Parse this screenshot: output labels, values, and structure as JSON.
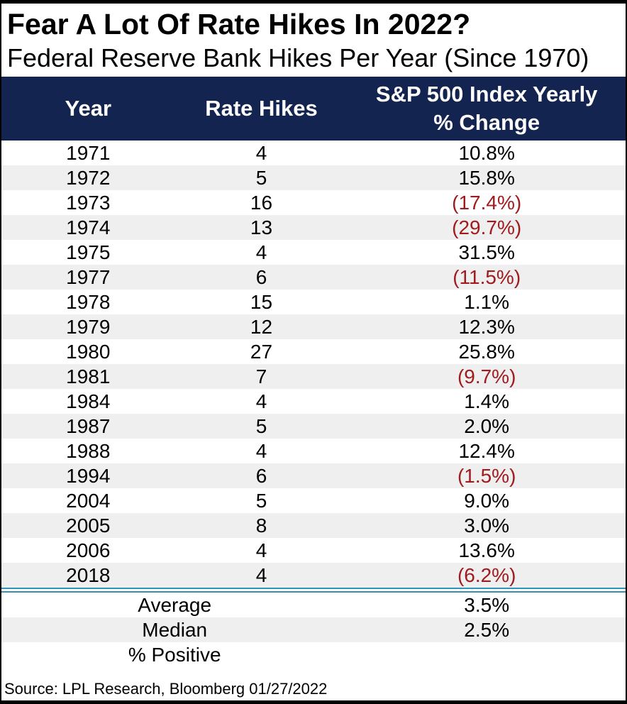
{
  "title": "Fear A Lot Of Rate Hikes In 2022?",
  "subtitle": "Federal Reserve Bank Hikes Per Year (Since 1970)",
  "header": {
    "year": "Year",
    "rate_hikes": "Rate Hikes",
    "change_line1": "S&P 500 Index Yearly",
    "change_line2": "% Change"
  },
  "chart_data": {
    "type": "table",
    "title": "Fear A Lot Of Rate Hikes In 2022?",
    "subtitle": "Federal Reserve Bank Hikes Per Year (Since 1970)",
    "columns": [
      "Year",
      "Rate Hikes",
      "S&P 500 Index Yearly % Change"
    ],
    "rows": [
      {
        "year": "1971",
        "rate_hikes": "4",
        "change": "10.8%"
      },
      {
        "year": "1972",
        "rate_hikes": "5",
        "change": "15.8%"
      },
      {
        "year": "1973",
        "rate_hikes": "16",
        "change": "(17.4%)"
      },
      {
        "year": "1974",
        "rate_hikes": "13",
        "change": "(29.7%)"
      },
      {
        "year": "1975",
        "rate_hikes": "4",
        "change": "31.5%"
      },
      {
        "year": "1977",
        "rate_hikes": "6",
        "change": "(11.5%)"
      },
      {
        "year": "1978",
        "rate_hikes": "15",
        "change": "1.1%"
      },
      {
        "year": "1979",
        "rate_hikes": "12",
        "change": "12.3%"
      },
      {
        "year": "1980",
        "rate_hikes": "27",
        "change": "25.8%"
      },
      {
        "year": "1981",
        "rate_hikes": "7",
        "change": "(9.7%)"
      },
      {
        "year": "1984",
        "rate_hikes": "4",
        "change": "1.4%"
      },
      {
        "year": "1987",
        "rate_hikes": "5",
        "change": "2.0%"
      },
      {
        "year": "1988",
        "rate_hikes": "4",
        "change": "12.4%"
      },
      {
        "year": "1994",
        "rate_hikes": "6",
        "change": "(1.5%)"
      },
      {
        "year": "2004",
        "rate_hikes": "5",
        "change": "9.0%"
      },
      {
        "year": "2005",
        "rate_hikes": "8",
        "change": "3.0%"
      },
      {
        "year": "2006",
        "rate_hikes": "4",
        "change": "13.6%"
      },
      {
        "year": "2018",
        "rate_hikes": "4",
        "change": "(6.2%)"
      }
    ],
    "summary": [
      {
        "label": "Average",
        "value": "3.5%"
      },
      {
        "label": "Median",
        "value": "2.5%"
      },
      {
        "label": "% Positive",
        "value": ""
      }
    ],
    "negative_format": "parentheses shown in dark red",
    "layout": {
      "striped": true,
      "header_position": "top"
    }
  },
  "footer": {
    "source": "Source: LPL Research, Bloomberg 01/27/2022"
  },
  "colors": {
    "header_bg": "#142450",
    "header_text": "#ffffff",
    "row_bg": "#ffffff",
    "row_alt_bg": "#efefef",
    "negative_text": "#a11a1e",
    "separator_line": "#2f94b4",
    "frame_border": "#000000",
    "body_text": "#000000"
  }
}
